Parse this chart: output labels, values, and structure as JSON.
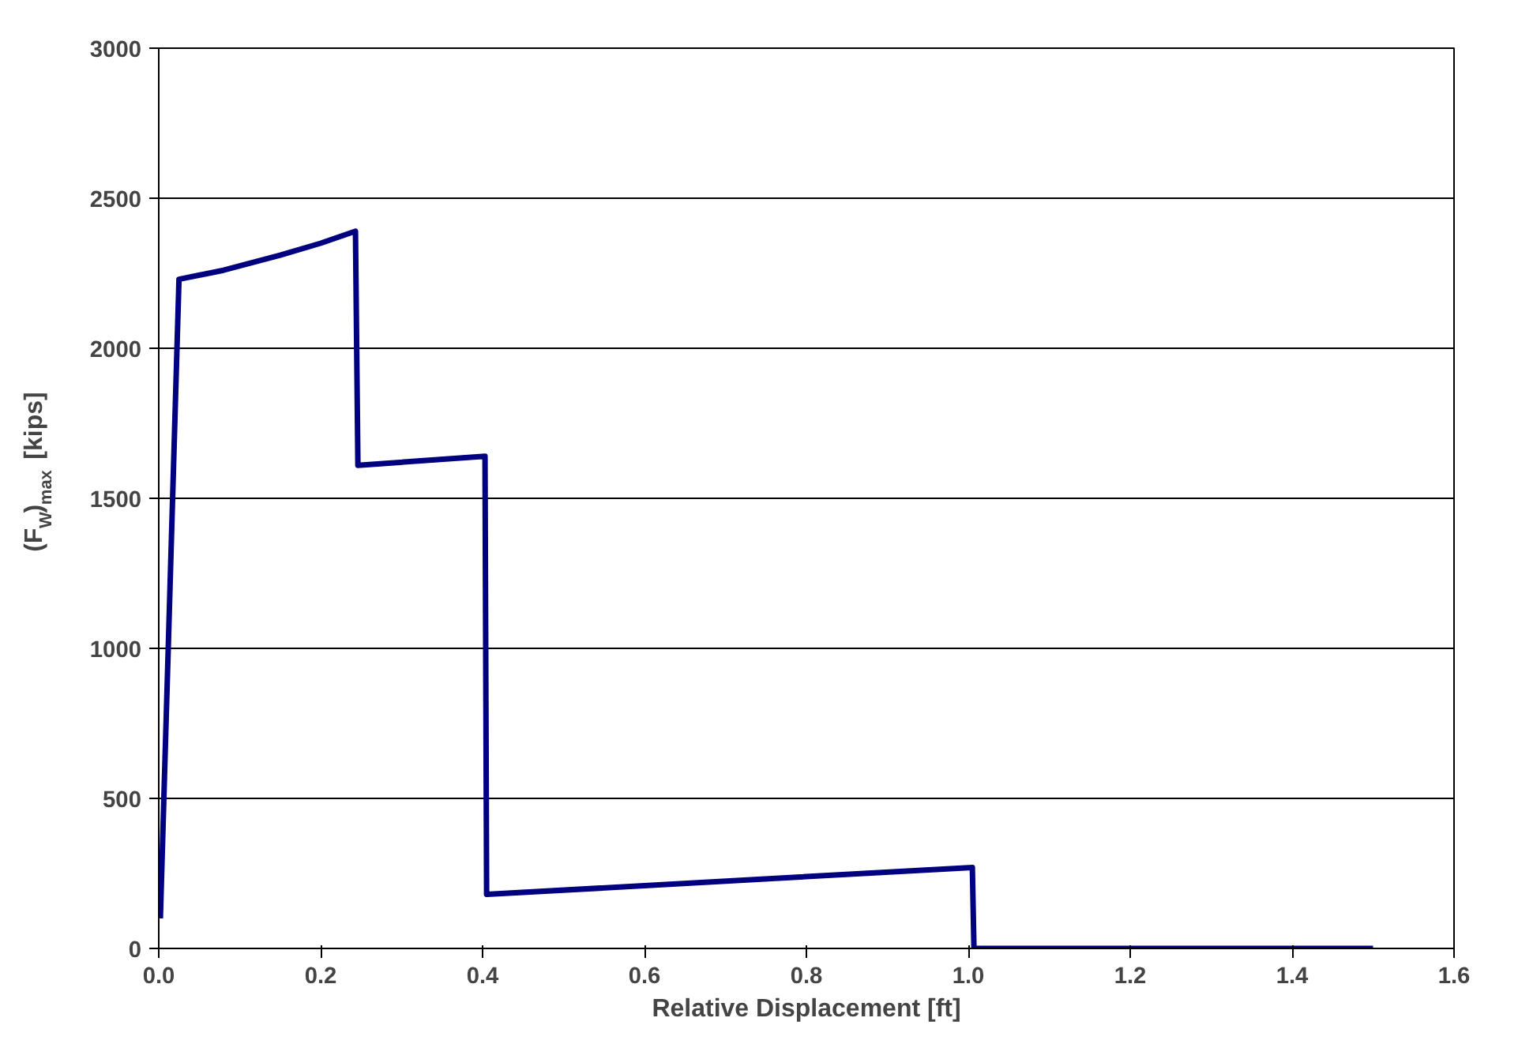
{
  "chart_data": {
    "type": "line",
    "xlabel": "Relative Displacement [ft]",
    "ylabel": "(F$_{W}$)$_{max}$ [kips]",
    "xlim": [
      0,
      1.6
    ],
    "xticks": [
      {
        "value": 0,
        "label": "0.0"
      },
      {
        "value": 0.2,
        "label": "0.2"
      },
      {
        "value": 0.4,
        "label": "0.4"
      },
      {
        "value": 0.6,
        "label": "0.6"
      },
      {
        "value": 0.8,
        "label": "0.8"
      },
      {
        "value": 1.0,
        "label": "1.0"
      },
      {
        "value": 1.2,
        "label": "1.2"
      },
      {
        "value": 1.4,
        "label": "1.4"
      },
      {
        "value": 1.6,
        "label": "1.6"
      }
    ],
    "ylim": [
      0,
      3000
    ],
    "yticks": [
      0,
      500,
      1000,
      1500,
      2000,
      2500,
      3000
    ],
    "grid": "y",
    "marker": "none",
    "line_style": "solid",
    "series": [
      {
        "color": "#000080",
        "x": [
          0.002,
          0.025,
          0.08,
          0.15,
          0.2,
          0.243,
          0.246,
          0.403,
          0.405,
          1.005,
          1.007,
          1.5
        ],
        "values": [
          100,
          2230,
          2260,
          2310,
          2350,
          2390,
          1610,
          1640,
          180,
          270,
          0,
          0
        ]
      }
    ]
  }
}
